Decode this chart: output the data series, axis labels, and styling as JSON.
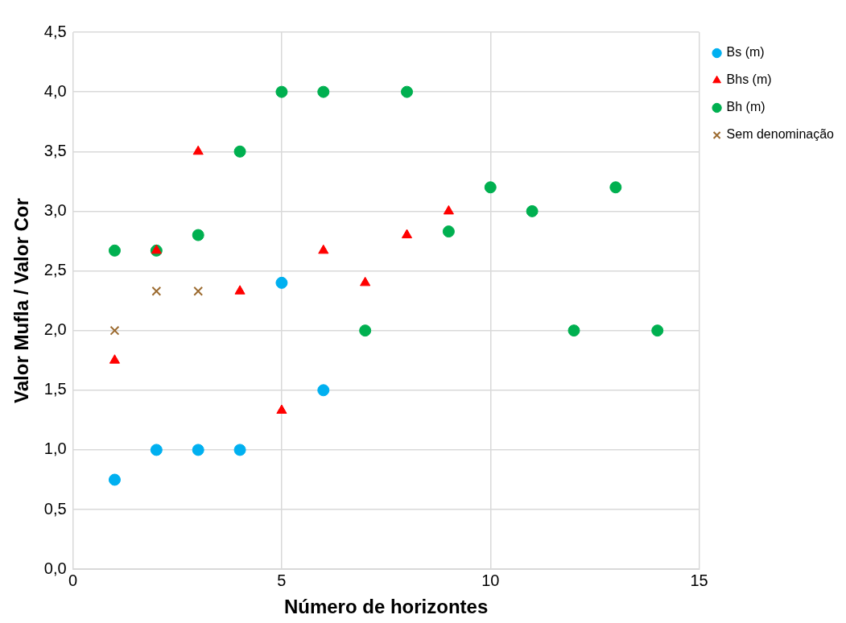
{
  "chart_data": {
    "type": "scatter",
    "xlabel": "Número de horizontes",
    "ylabel": "Valor Mufla / Valor Cor",
    "xlim": [
      0,
      15
    ],
    "xticks": [
      0,
      5,
      10,
      15
    ],
    "ylim": [
      0,
      4.5
    ],
    "yticks": [
      {
        "value": 0,
        "label": "0,0"
      },
      {
        "value": 0.5,
        "label": "0,5"
      },
      {
        "value": 1,
        "label": "1,0"
      },
      {
        "value": 1.5,
        "label": "1,5"
      },
      {
        "value": 2,
        "label": "2,0"
      },
      {
        "value": 2.5,
        "label": "2,5"
      },
      {
        "value": 3,
        "label": "3,0"
      },
      {
        "value": 3.5,
        "label": "3,5"
      },
      {
        "value": 4,
        "label": "4,0"
      },
      {
        "value": 4.5,
        "label": "4,5"
      }
    ],
    "grid": true,
    "legend": "right",
    "series": [
      {
        "name": "Bs (m)",
        "color": "#00b0f0",
        "marker": "circle",
        "x": [
          1,
          2,
          3,
          4,
          5,
          6
        ],
        "values": [
          0.75,
          1,
          1,
          1,
          2.4,
          1.5
        ]
      },
      {
        "name": "Bhs (m)",
        "color": "#ff0000",
        "marker": "triangle",
        "x": [
          1,
          2,
          3,
          4,
          5,
          6,
          7,
          8,
          9
        ],
        "values": [
          1.75,
          2.67,
          3.5,
          2.33,
          1.33,
          2.67,
          2.4,
          2.8,
          3
        ]
      },
      {
        "name": "Bh (m)",
        "color": "#00b050",
        "marker": "circle",
        "x": [
          1,
          2,
          3,
          4,
          5,
          6,
          7,
          8,
          9,
          10,
          11,
          12,
          13,
          14
        ],
        "values": [
          2.67,
          2.67,
          2.8,
          3.5,
          4,
          4,
          2,
          4,
          2.83,
          3.2,
          3,
          2,
          3.2,
          2
        ]
      },
      {
        "name": "Sem denominação",
        "color": "#9c6b30",
        "marker": "cross",
        "x": [
          1,
          2,
          3
        ],
        "values": [
          2,
          2.33,
          2.33
        ]
      }
    ]
  }
}
